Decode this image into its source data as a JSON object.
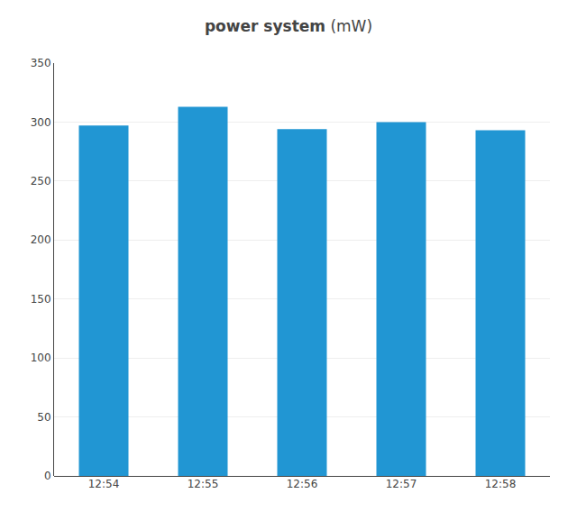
{
  "chart_data": {
    "type": "bar",
    "title": "power system",
    "subtitle": "(mW)",
    "categories": [
      "12:54",
      "12:55",
      "12:56",
      "12:57",
      "12:58"
    ],
    "values": [
      297,
      313,
      294,
      300,
      293
    ],
    "color": "#2196d3",
    "ylim": [
      0,
      350
    ],
    "yticks": [
      0,
      50,
      100,
      150,
      200,
      250,
      300,
      350
    ],
    "grid": true
  }
}
